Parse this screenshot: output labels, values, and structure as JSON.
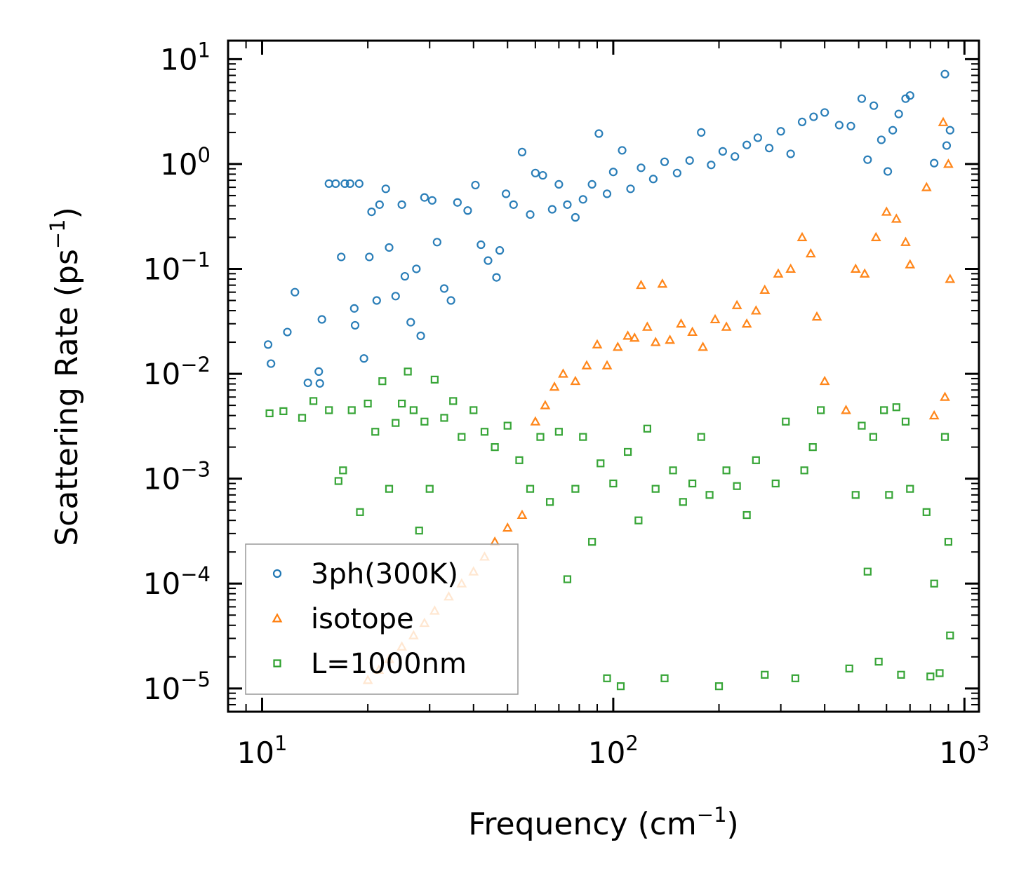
{
  "chart_data": {
    "type": "scatter",
    "xscale": "log",
    "yscale": "log",
    "xlim": [
      8,
      1100
    ],
    "ylim": [
      6e-06,
      15
    ],
    "xlabel": {
      "main": "Frequency (cm",
      "sup": "−1",
      "tail": ")"
    },
    "ylabel": {
      "main": "Scattering Rate (ps",
      "sup": "−1",
      "tail": ")"
    },
    "x_ticks": [
      {
        "value": 10,
        "base": "10",
        "exp": "1"
      },
      {
        "value": 100,
        "base": "10",
        "exp": "2"
      },
      {
        "value": 1000,
        "base": "10",
        "exp": "3"
      }
    ],
    "y_ticks": [
      {
        "value": 10,
        "base": "10",
        "exp": "1"
      },
      {
        "value": 1,
        "base": "10",
        "exp": "0"
      },
      {
        "value": 0.1,
        "base": "10",
        "exp": "−1"
      },
      {
        "value": 0.01,
        "base": "10",
        "exp": "−2"
      },
      {
        "value": 0.001,
        "base": "10",
        "exp": "−3"
      },
      {
        "value": 0.0001,
        "base": "10",
        "exp": "−4"
      },
      {
        "value": 1e-05,
        "base": "10",
        "exp": "−5"
      }
    ],
    "legend_position": "lower-left",
    "series": [
      {
        "name": "3ph(300K)",
        "marker": "circle",
        "color": "#1f77b4",
        "points": [
          [
            10.4,
            0.019
          ],
          [
            10.6,
            0.0125
          ],
          [
            11.8,
            0.025
          ],
          [
            12.4,
            0.06
          ],
          [
            13.5,
            0.0082
          ],
          [
            14.5,
            0.0105
          ],
          [
            14.6,
            0.0081
          ],
          [
            14.8,
            0.033
          ],
          [
            15.5,
            0.65
          ],
          [
            16.2,
            0.65
          ],
          [
            16.8,
            0.13
          ],
          [
            17.2,
            0.65
          ],
          [
            17.8,
            0.65
          ],
          [
            18.3,
            0.042
          ],
          [
            18.4,
            0.029
          ],
          [
            18.9,
            0.65
          ],
          [
            19.5,
            0.014
          ],
          [
            20.2,
            0.13
          ],
          [
            20.5,
            0.35
          ],
          [
            21.2,
            0.05
          ],
          [
            21.6,
            0.41
          ],
          [
            22.5,
            0.58
          ],
          [
            23.0,
            0.16
          ],
          [
            24.0,
            0.055
          ],
          [
            25.0,
            0.41
          ],
          [
            25.5,
            0.085
          ],
          [
            26.5,
            0.031
          ],
          [
            27.5,
            0.1
          ],
          [
            28.3,
            0.023
          ],
          [
            29.0,
            0.48
          ],
          [
            30.5,
            0.45
          ],
          [
            31.5,
            0.18
          ],
          [
            33.0,
            0.065
          ],
          [
            34.5,
            0.05
          ],
          [
            36.0,
            0.43
          ],
          [
            38.5,
            0.36
          ],
          [
            40.5,
            0.63
          ],
          [
            42.0,
            0.17
          ],
          [
            44.0,
            0.12
          ],
          [
            46.5,
            0.083
          ],
          [
            47.5,
            0.15
          ],
          [
            49.5,
            0.52
          ],
          [
            52.0,
            0.41
          ],
          [
            55.0,
            1.3
          ],
          [
            58.0,
            0.33
          ],
          [
            60.0,
            0.82
          ],
          [
            63.0,
            0.78
          ],
          [
            67.0,
            0.37
          ],
          [
            70.0,
            0.64
          ],
          [
            74.0,
            0.41
          ],
          [
            78.0,
            0.31
          ],
          [
            82.0,
            0.46
          ],
          [
            87.0,
            0.64
          ],
          [
            91.0,
            1.95
          ],
          [
            96.0,
            0.52
          ],
          [
            100.0,
            0.84
          ],
          [
            106.0,
            1.35
          ],
          [
            112.0,
            0.58
          ],
          [
            120.0,
            0.92
          ],
          [
            130.0,
            0.72
          ],
          [
            140.0,
            1.05
          ],
          [
            152.0,
            0.82
          ],
          [
            165.0,
            1.08
          ],
          [
            178.0,
            2.0
          ],
          [
            190.0,
            0.98
          ],
          [
            205.0,
            1.32
          ],
          [
            222.0,
            1.18
          ],
          [
            240.0,
            1.52
          ],
          [
            258.0,
            1.78
          ],
          [
            278.0,
            1.42
          ],
          [
            300.0,
            2.05
          ],
          [
            320.0,
            1.25
          ],
          [
            345.0,
            2.52
          ],
          [
            372.0,
            2.82
          ],
          [
            400.0,
            3.1
          ],
          [
            440.0,
            2.35
          ],
          [
            475.0,
            2.3
          ],
          [
            510.0,
            4.2
          ],
          [
            530.0,
            1.1
          ],
          [
            552.0,
            3.6
          ],
          [
            580.0,
            1.7
          ],
          [
            605.0,
            0.85
          ],
          [
            625.0,
            2.1
          ],
          [
            650.0,
            3.0
          ],
          [
            680.0,
            4.2
          ],
          [
            700.0,
            4.5
          ],
          [
            820.0,
            1.02
          ],
          [
            880.0,
            7.2
          ],
          [
            890.0,
            1.5
          ],
          [
            910.0,
            2.1
          ]
        ]
      },
      {
        "name": "isotope",
        "marker": "triangle",
        "color": "#ff7f0e",
        "points": [
          [
            20.0,
            1.2e-05
          ],
          [
            21.5,
            1.5e-05
          ],
          [
            23.0,
            1.9e-05
          ],
          [
            25.0,
            2.5e-05
          ],
          [
            27.0,
            3.2e-05
          ],
          [
            29.0,
            4.2e-05
          ],
          [
            31.0,
            5.5e-05
          ],
          [
            34.0,
            7.5e-05
          ],
          [
            37.0,
            0.0001
          ],
          [
            40.0,
            0.00013
          ],
          [
            43.0,
            0.00018
          ],
          [
            46.0,
            0.00025
          ],
          [
            50.0,
            0.00034
          ],
          [
            55.0,
            0.00045
          ],
          [
            60.0,
            0.0035
          ],
          [
            64.0,
            0.005
          ],
          [
            68.0,
            0.0075
          ],
          [
            72.0,
            0.01
          ],
          [
            78.0,
            0.0085
          ],
          [
            84.0,
            0.012
          ],
          [
            90.0,
            0.019
          ],
          [
            96.0,
            0.012
          ],
          [
            103.0,
            0.018
          ],
          [
            110.0,
            0.023
          ],
          [
            115.0,
            0.022
          ],
          [
            120.0,
            0.07
          ],
          [
            125.0,
            0.028
          ],
          [
            132.0,
            0.02
          ],
          [
            138.0,
            0.072
          ],
          [
            145.0,
            0.021
          ],
          [
            156.0,
            0.03
          ],
          [
            168.0,
            0.025
          ],
          [
            180.0,
            0.018
          ],
          [
            195.0,
            0.033
          ],
          [
            210.0,
            0.028
          ],
          [
            225.0,
            0.045
          ],
          [
            240.0,
            0.03
          ],
          [
            255.0,
            0.04
          ],
          [
            270.0,
            0.063
          ],
          [
            295.0,
            0.09
          ],
          [
            320.0,
            0.1
          ],
          [
            345.0,
            0.2
          ],
          [
            365.0,
            0.14
          ],
          [
            380.0,
            0.035
          ],
          [
            400.0,
            0.0085
          ],
          [
            460.0,
            0.0045
          ],
          [
            490.0,
            0.1
          ],
          [
            520.0,
            0.09
          ],
          [
            560.0,
            0.2
          ],
          [
            600.0,
            0.35
          ],
          [
            640.0,
            0.3
          ],
          [
            680.0,
            0.18
          ],
          [
            700.0,
            0.11
          ],
          [
            780.0,
            0.6
          ],
          [
            820.0,
            0.004
          ],
          [
            870.0,
            2.5
          ],
          [
            880.0,
            0.006
          ],
          [
            900.0,
            1.0
          ],
          [
            910.0,
            0.08
          ]
        ]
      },
      {
        "name": "L=1000nm",
        "marker": "square",
        "color": "#2ca02c",
        "points": [
          [
            10.5,
            0.0042
          ],
          [
            11.5,
            0.0044
          ],
          [
            13.0,
            0.0038
          ],
          [
            14.0,
            0.0055
          ],
          [
            15.5,
            0.0045
          ],
          [
            16.5,
            0.00095
          ],
          [
            17.0,
            0.0012
          ],
          [
            18.0,
            0.0045
          ],
          [
            19.0,
            0.00048
          ],
          [
            20.0,
            0.0052
          ],
          [
            21.0,
            0.0028
          ],
          [
            22.0,
            0.0085
          ],
          [
            23.0,
            0.0008
          ],
          [
            24.0,
            0.0034
          ],
          [
            25.0,
            0.0052
          ],
          [
            26.0,
            0.0105
          ],
          [
            27.0,
            0.0045
          ],
          [
            28.0,
            0.00032
          ],
          [
            29.0,
            0.0035
          ],
          [
            30.0,
            0.0008
          ],
          [
            31.0,
            0.0088
          ],
          [
            33.0,
            0.0038
          ],
          [
            35.0,
            0.0055
          ],
          [
            37.0,
            0.0025
          ],
          [
            40.0,
            0.0045
          ],
          [
            43.0,
            0.0028
          ],
          [
            46.0,
            0.002
          ],
          [
            50.0,
            0.0032
          ],
          [
            54.0,
            0.0015
          ],
          [
            58.0,
            0.0008
          ],
          [
            62.0,
            0.0025
          ],
          [
            66.0,
            0.0006
          ],
          [
            70.0,
            0.0028
          ],
          [
            74.0,
            0.00011
          ],
          [
            78.0,
            0.0008
          ],
          [
            82.0,
            0.0025
          ],
          [
            87.0,
            0.00025
          ],
          [
            92.0,
            0.0014
          ],
          [
            96.0,
            1.25e-05
          ],
          [
            100.0,
            0.0009
          ],
          [
            105.0,
            1.05e-05
          ],
          [
            110.0,
            0.0018
          ],
          [
            118.0,
            0.0004
          ],
          [
            125.0,
            0.003
          ],
          [
            132.0,
            0.0008
          ],
          [
            140.0,
            1.25e-05
          ],
          [
            148.0,
            0.0012
          ],
          [
            158.0,
            0.0006
          ],
          [
            168.0,
            0.0009
          ],
          [
            178.0,
            0.0025
          ],
          [
            188.0,
            0.0007
          ],
          [
            200.0,
            1.05e-05
          ],
          [
            210.0,
            0.0012
          ],
          [
            225.0,
            0.00085
          ],
          [
            240.0,
            0.00045
          ],
          [
            255.0,
            0.0015
          ],
          [
            270.0,
            1.35e-05
          ],
          [
            290.0,
            0.0009
          ],
          [
            310.0,
            0.0035
          ],
          [
            330.0,
            1.25e-05
          ],
          [
            350.0,
            0.0012
          ],
          [
            370.0,
            0.002
          ],
          [
            390.0,
            0.0045
          ],
          [
            470.0,
            1.55e-05
          ],
          [
            490.0,
            0.0007
          ],
          [
            510.0,
            0.0032
          ],
          [
            530.0,
            0.00013
          ],
          [
            550.0,
            0.0025
          ],
          [
            570.0,
            1.8e-05
          ],
          [
            590.0,
            0.0045
          ],
          [
            610.0,
            0.0007
          ],
          [
            640.0,
            0.0048
          ],
          [
            660.0,
            1.35e-05
          ],
          [
            680.0,
            0.0035
          ],
          [
            700.0,
            0.0008
          ],
          [
            780.0,
            0.00048
          ],
          [
            800.0,
            1.3e-05
          ],
          [
            820.0,
            0.0001
          ],
          [
            850.0,
            1.4e-05
          ],
          [
            880.0,
            0.0025
          ],
          [
            900.0,
            0.00025
          ],
          [
            910.0,
            3.2e-05
          ]
        ]
      }
    ]
  }
}
